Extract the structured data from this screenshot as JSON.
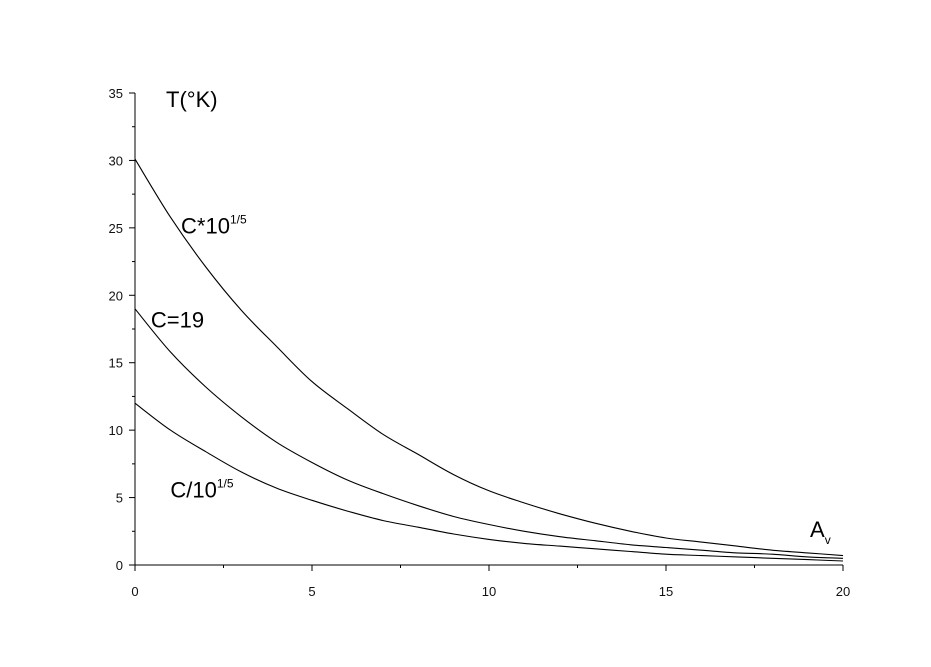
{
  "chart_data": {
    "type": "line",
    "title": "",
    "xlabel": "A",
    "xlabel_subscript": "v",
    "ylabel": "T(°K)",
    "xlim": [
      0,
      20
    ],
    "ylim": [
      0,
      35
    ],
    "x_ticks": [
      0,
      5,
      10,
      15,
      20
    ],
    "y_ticks": [
      0,
      5,
      10,
      15,
      20,
      25,
      30,
      35
    ],
    "x_tick_labels": [
      "0",
      "5",
      "10",
      "15",
      "20"
    ],
    "y_tick_labels": [
      "0",
      "5",
      "10",
      "15",
      "20",
      "25",
      "30",
      "35"
    ],
    "grid": false,
    "line_color": "#000000",
    "series": [
      {
        "x": [
          0,
          1,
          2,
          3,
          4,
          5,
          6,
          7,
          8,
          9,
          10,
          11,
          12,
          13,
          14,
          15,
          16,
          17,
          18,
          19,
          20
        ],
        "values": [
          30.1,
          25.8,
          22.1,
          18.9,
          16.2,
          13.6,
          11.6,
          9.7,
          8.2,
          6.7,
          5.5,
          4.6,
          3.8,
          3.1,
          2.5,
          2.0,
          1.7,
          1.4,
          1.1,
          0.9,
          0.7
        ]
      },
      {
        "x": [
          0,
          1,
          2,
          3,
          4,
          5,
          6,
          7,
          8,
          9,
          10,
          11,
          12,
          13,
          14,
          15,
          16,
          17,
          18,
          19,
          20
        ],
        "values": [
          19.0,
          15.8,
          13.2,
          11.0,
          9.1,
          7.6,
          6.3,
          5.3,
          4.4,
          3.6,
          3.0,
          2.5,
          2.1,
          1.8,
          1.5,
          1.3,
          1.1,
          0.9,
          0.8,
          0.6,
          0.5
        ]
      },
      {
        "x": [
          0,
          1,
          2,
          3,
          4,
          5,
          6,
          7,
          8,
          9,
          10,
          11,
          12,
          13,
          14,
          15,
          16,
          17,
          18,
          19,
          20
        ],
        "values": [
          12.0,
          10.0,
          8.4,
          6.9,
          5.7,
          4.8,
          4.0,
          3.3,
          2.8,
          2.3,
          1.9,
          1.6,
          1.4,
          1.2,
          1.0,
          0.8,
          0.7,
          0.6,
          0.5,
          0.4,
          0.3
        ]
      }
    ],
    "annotations": [
      {
        "base": "C*10",
        "sup": "1/5",
        "x": 1.3,
        "y": 24.6
      },
      {
        "base": "C=19",
        "sup": "",
        "x": 0.45,
        "y": 17.6
      },
      {
        "base": "C/10",
        "sup": "1/5",
        "x": 1.0,
        "y": 5.0
      }
    ]
  }
}
